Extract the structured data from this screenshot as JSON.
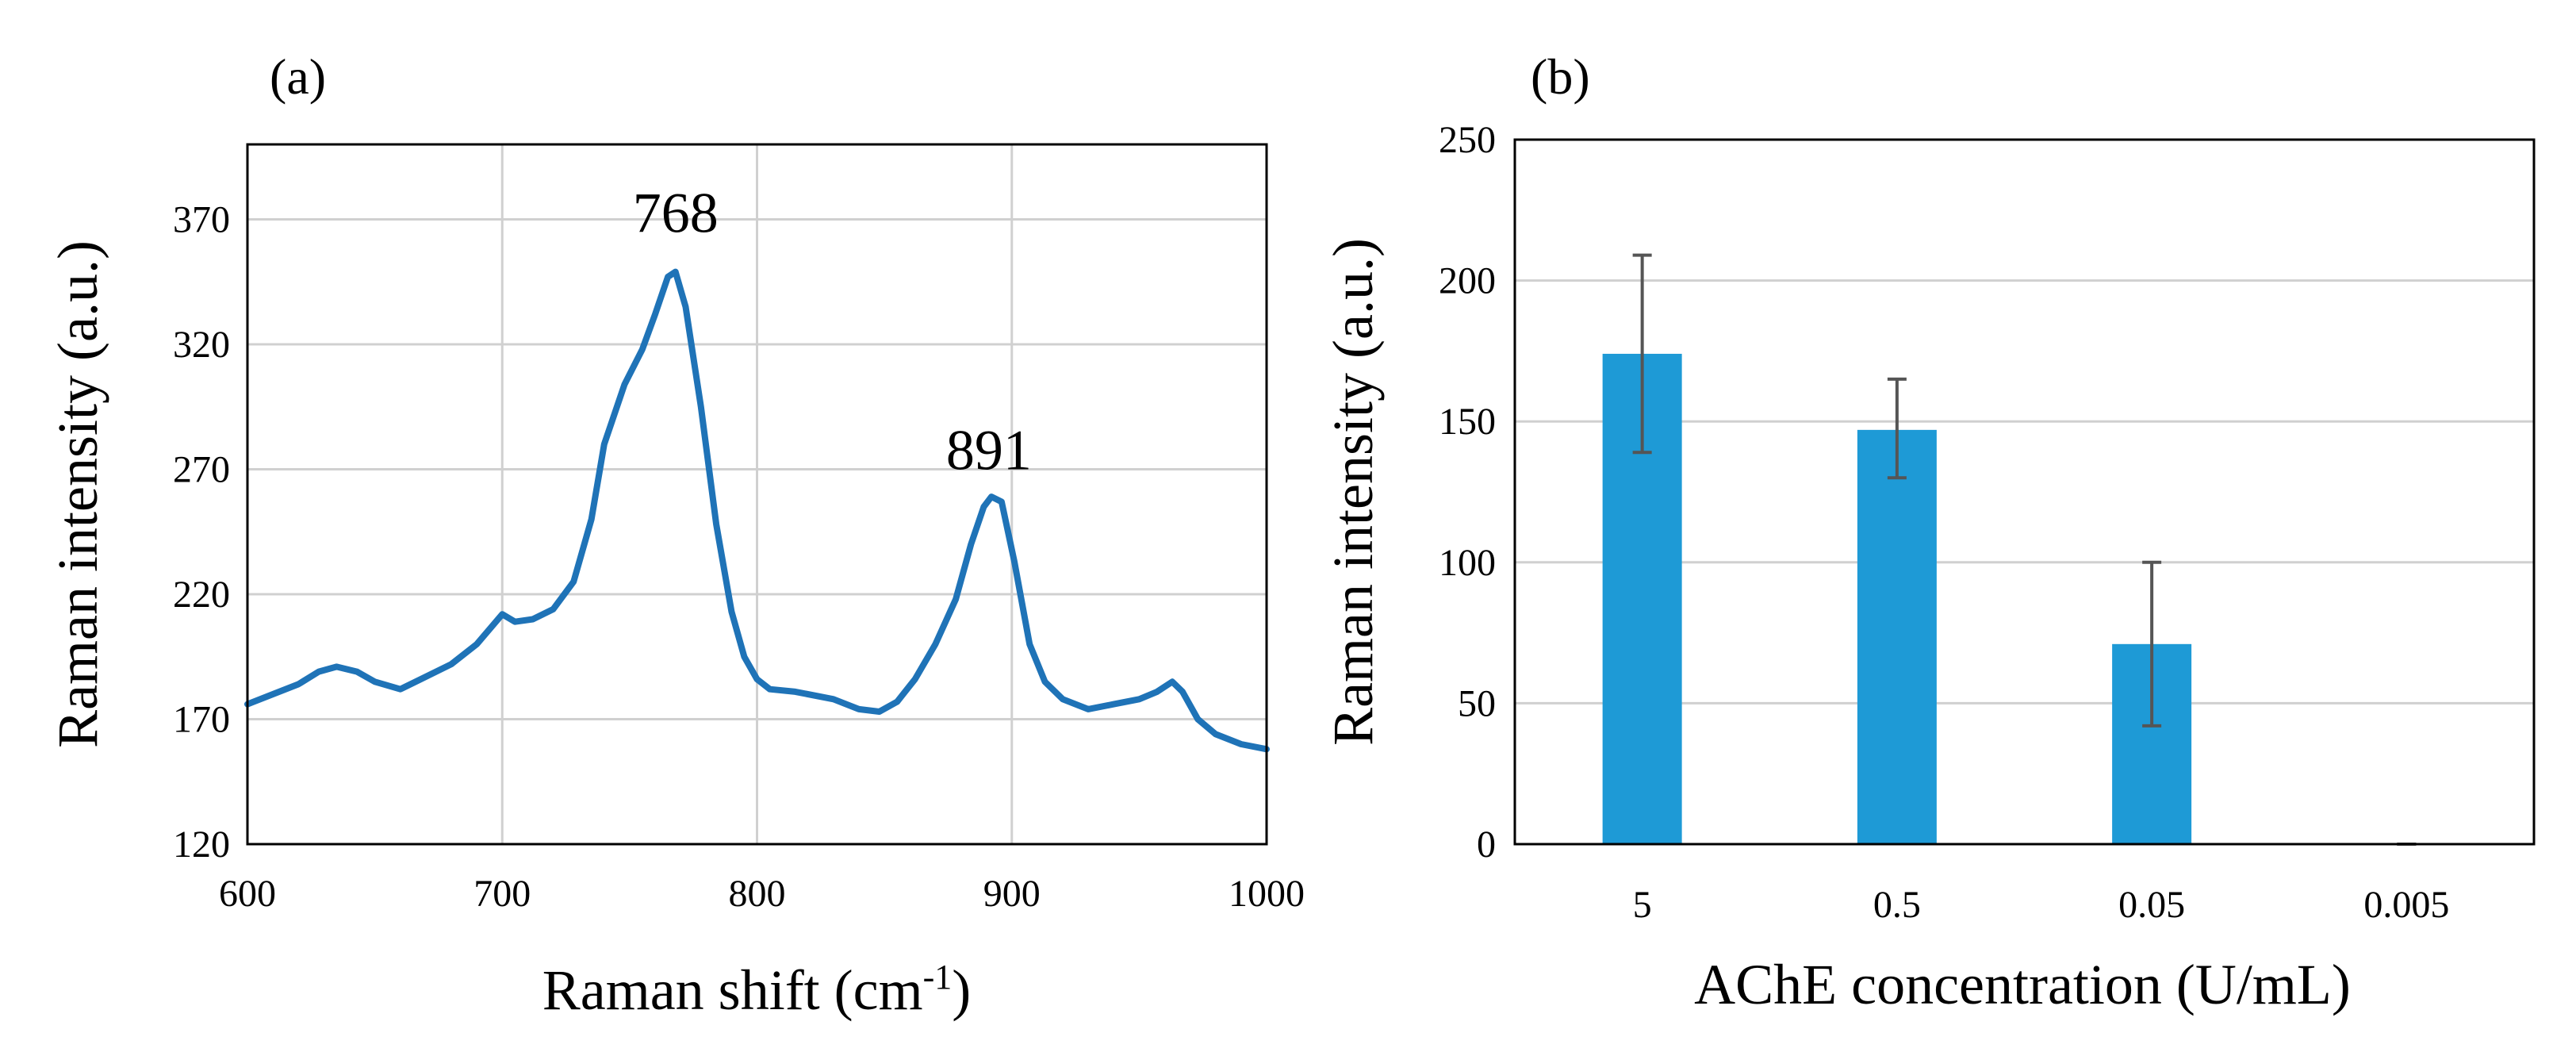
{
  "colors": {
    "line": "#1f73b7",
    "bar": "#1e9ad6",
    "grid": "#d0d0d0",
    "errorbar": "#555555",
    "axis": "#000000"
  },
  "chart_data": [
    {
      "type": "line",
      "panel_label": "(a)",
      "xlabel": "Raman shift (cm",
      "xlabel_superscript": "-1",
      "xlabel_suffix": ")",
      "ylabel": "Raman intensity (a.u.)",
      "xlim": [
        600,
        1000
      ],
      "ylim": [
        120,
        400
      ],
      "xticks": [
        600,
        700,
        800,
        900,
        1000
      ],
      "yticks": [
        120,
        170,
        220,
        270,
        320,
        370
      ],
      "grid": true,
      "annotations": [
        {
          "text": "768",
          "x": 768,
          "y": 365
        },
        {
          "text": "891",
          "x": 891,
          "y": 270
        }
      ],
      "series": [
        {
          "name": "spectrum",
          "points": [
            [
              600,
              176
            ],
            [
              610,
              180
            ],
            [
              620,
              184
            ],
            [
              628,
              189
            ],
            [
              635,
              191
            ],
            [
              643,
              189
            ],
            [
              650,
              185
            ],
            [
              660,
              182
            ],
            [
              668,
              186
            ],
            [
              680,
              192
            ],
            [
              690,
              200
            ],
            [
              700,
              212
            ],
            [
              705,
              209
            ],
            [
              712,
              210
            ],
            [
              720,
              214
            ],
            [
              728,
              225
            ],
            [
              735,
              250
            ],
            [
              740,
              280
            ],
            [
              748,
              304
            ],
            [
              755,
              318
            ],
            [
              760,
              332
            ],
            [
              765,
              347
            ],
            [
              768,
              349
            ],
            [
              772,
              335
            ],
            [
              778,
              295
            ],
            [
              784,
              248
            ],
            [
              790,
              213
            ],
            [
              795,
              195
            ],
            [
              800,
              186
            ],
            [
              805,
              182
            ],
            [
              815,
              181
            ],
            [
              830,
              178
            ],
            [
              840,
              174
            ],
            [
              848,
              173
            ],
            [
              855,
              177
            ],
            [
              862,
              186
            ],
            [
              870,
              200
            ],
            [
              878,
              218
            ],
            [
              884,
              240
            ],
            [
              889,
              255
            ],
            [
              892,
              259
            ],
            [
              896,
              257
            ],
            [
              901,
              233
            ],
            [
              907,
              200
            ],
            [
              913,
              185
            ],
            [
              920,
              178
            ],
            [
              930,
              174
            ],
            [
              940,
              176
            ],
            [
              950,
              178
            ],
            [
              957,
              181
            ],
            [
              963,
              185
            ],
            [
              967,
              181
            ],
            [
              973,
              170
            ],
            [
              980,
              164
            ],
            [
              990,
              160
            ],
            [
              1000,
              158
            ]
          ]
        }
      ]
    },
    {
      "type": "bar",
      "panel_label": "(b)",
      "xlabel": "AChE concentration (U/mL)",
      "ylabel": "Raman intensity (a.u.)",
      "ylim": [
        0,
        250
      ],
      "yticks": [
        0,
        50,
        100,
        150,
        200,
        250
      ],
      "grid": true,
      "categories": [
        "5",
        "0.5",
        "0.05",
        "0.005"
      ],
      "values": [
        174,
        147,
        71,
        0
      ],
      "error_low": [
        139,
        130,
        42,
        0
      ],
      "error_high": [
        209,
        165,
        100,
        0
      ]
    }
  ]
}
